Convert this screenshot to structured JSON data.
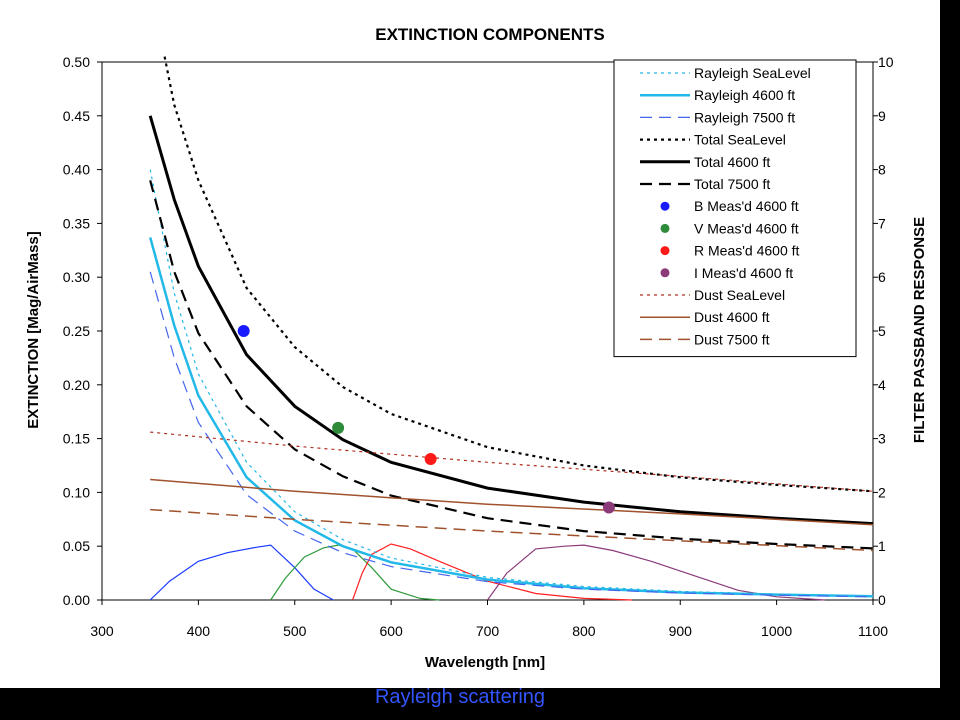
{
  "caption": "Rayleigh scattering",
  "chart_data": {
    "type": "line",
    "title": "EXTINCTION COMPONENTS",
    "xlabel": "Wavelength [nm]",
    "ylabel": "EXTINCTION [Mag/AirMass]",
    "y2label": "FILTER PASSBAND RESPONSE",
    "xlim": [
      300,
      1100
    ],
    "ylim": [
      0,
      0.5
    ],
    "y2lim": [
      0,
      10
    ],
    "xticks": [
      "300",
      "400",
      "500",
      "600",
      "700",
      "800",
      "900",
      "1000",
      "1100"
    ],
    "yticks": [
      "0.00",
      "0.05",
      "0.10",
      "0.15",
      "0.20",
      "0.25",
      "0.30",
      "0.35",
      "0.40",
      "0.45",
      "0.50"
    ],
    "y2ticks": [
      "0",
      "1",
      "2",
      "3",
      "4",
      "5",
      "6",
      "7",
      "8",
      "9",
      "10"
    ],
    "grid": false,
    "legend_position": "top-right",
    "series": [
      {
        "name": "Rayleigh SeaLevel",
        "color": "#22b8e8",
        "style": "dotted",
        "width": 1.2,
        "x": [
          350,
          375,
          400,
          450,
          500,
          550,
          600,
          700,
          800,
          900,
          1000,
          1100
        ],
        "y": [
          0.4,
          0.285,
          0.21,
          0.128,
          0.082,
          0.056,
          0.039,
          0.021,
          0.0125,
          0.008,
          0.0055,
          0.0038
        ]
      },
      {
        "name": "Rayleigh 4600 ft",
        "color": "#22b8e8",
        "style": "solid",
        "width": 2.5,
        "x": [
          350,
          375,
          400,
          450,
          500,
          550,
          600,
          700,
          800,
          900,
          1000,
          1100
        ],
        "y": [
          0.337,
          0.255,
          0.19,
          0.114,
          0.074,
          0.05,
          0.035,
          0.019,
          0.011,
          0.007,
          0.005,
          0.0035
        ]
      },
      {
        "name": "Rayleigh 7500 ft",
        "color": "#4466ee",
        "style": "dashed",
        "width": 1.2,
        "x": [
          350,
          375,
          400,
          450,
          500,
          550,
          600,
          700,
          800,
          900,
          1000,
          1100
        ],
        "y": [
          0.305,
          0.225,
          0.165,
          0.098,
          0.064,
          0.044,
          0.031,
          0.017,
          0.01,
          0.0065,
          0.0045,
          0.003
        ]
      },
      {
        "name": "Total SeaLevel",
        "color": "#000000",
        "style": "dotted",
        "width": 2.2,
        "x": [
          365,
          375,
          400,
          450,
          500,
          550,
          600,
          700,
          800,
          900,
          1000,
          1100
        ],
        "y": [
          0.505,
          0.46,
          0.39,
          0.29,
          0.235,
          0.198,
          0.173,
          0.142,
          0.125,
          0.114,
          0.107,
          0.101
        ]
      },
      {
        "name": "Total 4600 ft",
        "color": "#000000",
        "style": "solid",
        "width": 3,
        "x": [
          350,
          375,
          400,
          450,
          500,
          550,
          600,
          700,
          800,
          900,
          1000,
          1100
        ],
        "y": [
          0.45,
          0.372,
          0.31,
          0.228,
          0.18,
          0.149,
          0.128,
          0.104,
          0.091,
          0.082,
          0.076,
          0.071
        ]
      },
      {
        "name": "Total 7500 ft",
        "color": "#000000",
        "style": "dashed",
        "width": 2.2,
        "x": [
          350,
          375,
          400,
          450,
          500,
          550,
          600,
          700,
          800,
          900,
          1000,
          1100
        ],
        "y": [
          0.39,
          0.305,
          0.248,
          0.18,
          0.14,
          0.115,
          0.097,
          0.076,
          0.064,
          0.057,
          0.052,
          0.048
        ]
      },
      {
        "name": "Dust SeaLevel",
        "color": "#b03020",
        "style": "dotted",
        "width": 1.2,
        "x": [
          350,
          500,
          700,
          900,
          1100
        ],
        "y": [
          0.156,
          0.143,
          0.128,
          0.115,
          0.101
        ]
      },
      {
        "name": "Dust 4600 ft",
        "color": "#a0522d",
        "style": "solid",
        "width": 1.5,
        "x": [
          350,
          500,
          700,
          900,
          1100
        ],
        "y": [
          0.112,
          0.101,
          0.089,
          0.08,
          0.07
        ]
      },
      {
        "name": "Dust 7500 ft",
        "color": "#a0522d",
        "style": "dashed",
        "width": 1.5,
        "x": [
          350,
          500,
          700,
          900,
          1100
        ],
        "y": [
          0.084,
          0.075,
          0.064,
          0.055,
          0.046
        ]
      }
    ],
    "points": [
      {
        "name": "B Meas'd 4600 ft",
        "color": "#1a1aff",
        "x": 447,
        "y": 0.25
      },
      {
        "name": "V Meas'd 4600 ft",
        "color": "#2e8b3a",
        "x": 545,
        "y": 0.16
      },
      {
        "name": "R Meas'd 4600 ft",
        "color": "#ff1a1a",
        "x": 641,
        "y": 0.131
      },
      {
        "name": " I Meas'd 4600 ft",
        "color": "#8b3a7a",
        "x": 826,
        "y": 0.086
      }
    ],
    "passbands": [
      {
        "band": "B",
        "color": "#1a3aff",
        "axis": "y2",
        "x": [
          350,
          370,
          400,
          430,
          460,
          475,
          500,
          520,
          540
        ],
        "y": [
          0,
          0.35,
          0.72,
          0.88,
          0.98,
          1.02,
          0.6,
          0.2,
          0
        ]
      },
      {
        "band": "V",
        "color": "#2e9b3a",
        "axis": "y2",
        "x": [
          475,
          490,
          510,
          530,
          545,
          560,
          580,
          600,
          630,
          650
        ],
        "y": [
          0,
          0.4,
          0.8,
          0.97,
          1.02,
          0.95,
          0.6,
          0.2,
          0.03,
          0
        ]
      },
      {
        "band": "R",
        "color": "#ff2020",
        "axis": "y2",
        "x": [
          560,
          570,
          580,
          600,
          620,
          650,
          700,
          750,
          800,
          850
        ],
        "y": [
          0,
          0.5,
          0.85,
          1.04,
          0.95,
          0.72,
          0.35,
          0.12,
          0.03,
          0
        ]
      },
      {
        "band": "I",
        "color": "#8b3a7a",
        "axis": "y2",
        "x": [
          700,
          720,
          750,
          780,
          800,
          830,
          870,
          920,
          960,
          1000,
          1050
        ],
        "y": [
          0,
          0.5,
          0.95,
          1.0,
          1.02,
          0.92,
          0.72,
          0.42,
          0.18,
          0.06,
          0
        ]
      }
    ]
  }
}
